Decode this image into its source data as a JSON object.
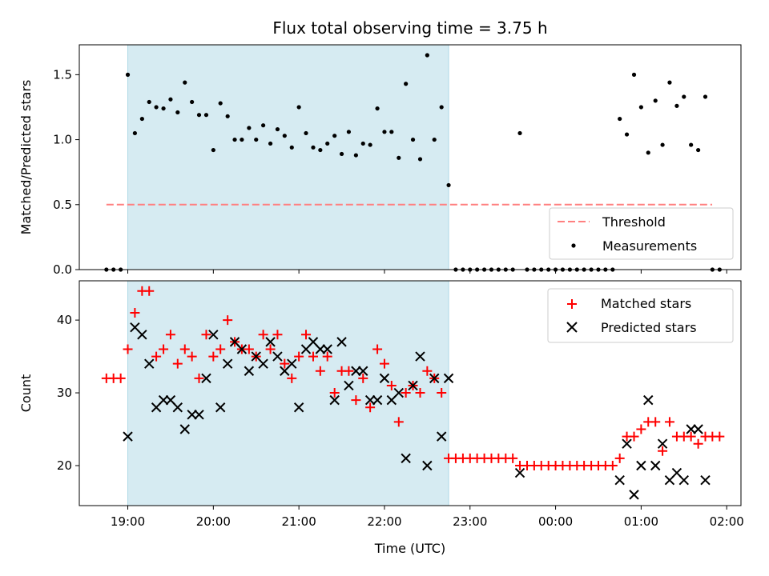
{
  "chart_data": {
    "type": "scatter",
    "title": "Flux total observing time = 3.75 h",
    "xlabel": "Time (UTC)",
    "x_ticks": [
      "19:00",
      "20:00",
      "21:00",
      "22:00",
      "23:00",
      "00:00",
      "01:00",
      "02:00"
    ],
    "x_range_hours": [
      18.4333,
      26.1667
    ],
    "shaded_span_hours": [
      19.0,
      22.75
    ],
    "shade_color": "#add8e6",
    "panels": [
      {
        "ylabel": "Matched/Predicted stars",
        "ylim": [
          0,
          1.73
        ],
        "y_ticks": [
          "0.0",
          "0.5",
          "1.0",
          "1.5"
        ],
        "y_tick_values": [
          0,
          0.5,
          1.0,
          1.5
        ],
        "legend_position": "lower right",
        "threshold": {
          "name": "Threshold",
          "value": 0.5,
          "x_range": [
            18.75,
            25.83
          ],
          "color": "#ff8080"
        },
        "series": [
          {
            "name": "Measurements",
            "marker": "dot",
            "color": "#000000",
            "points": [
              [
                18.75,
                0
              ],
              [
                18.833,
                0
              ],
              [
                18.917,
                0
              ],
              [
                19.0,
                1.5
              ],
              [
                19.083,
                1.05
              ],
              [
                19.167,
                1.16
              ],
              [
                19.25,
                1.29
              ],
              [
                19.333,
                1.25
              ],
              [
                19.417,
                1.24
              ],
              [
                19.5,
                1.31
              ],
              [
                19.583,
                1.21
              ],
              [
                19.667,
                1.44
              ],
              [
                19.75,
                1.29
              ],
              [
                19.833,
                1.19
              ],
              [
                19.917,
                1.19
              ],
              [
                20.0,
                0.92
              ],
              [
                20.083,
                1.28
              ],
              [
                20.167,
                1.18
              ],
              [
                20.25,
                1.0
              ],
              [
                20.333,
                1.0
              ],
              [
                20.417,
                1.09
              ],
              [
                20.5,
                1.0
              ],
              [
                20.583,
                1.11
              ],
              [
                20.667,
                0.97
              ],
              [
                20.75,
                1.08
              ],
              [
                20.833,
                1.03
              ],
              [
                20.917,
                0.94
              ],
              [
                21.0,
                1.25
              ],
              [
                21.083,
                1.05
              ],
              [
                21.167,
                0.94
              ],
              [
                21.25,
                0.92
              ],
              [
                21.333,
                0.97
              ],
              [
                21.417,
                1.03
              ],
              [
                21.5,
                0.89
              ],
              [
                21.583,
                1.06
              ],
              [
                21.667,
                0.88
              ],
              [
                21.75,
                0.97
              ],
              [
                21.833,
                0.96
              ],
              [
                21.917,
                1.24
              ],
              [
                22.0,
                1.06
              ],
              [
                22.083,
                1.06
              ],
              [
                22.167,
                0.86
              ],
              [
                22.25,
                1.43
              ],
              [
                22.333,
                1.0
              ],
              [
                22.417,
                0.85
              ],
              [
                22.5,
                1.65
              ],
              [
                22.583,
                1.0
              ],
              [
                22.667,
                1.25
              ],
              [
                22.75,
                0.65
              ],
              [
                22.833,
                0
              ],
              [
                22.917,
                0
              ],
              [
                23.0,
                0
              ],
              [
                23.083,
                0
              ],
              [
                23.167,
                0
              ],
              [
                23.25,
                0
              ],
              [
                23.333,
                0
              ],
              [
                23.417,
                0
              ],
              [
                23.5,
                0
              ],
              [
                23.583,
                1.05
              ],
              [
                23.667,
                0
              ],
              [
                23.75,
                0
              ],
              [
                23.833,
                0
              ],
              [
                23.917,
                0
              ],
              [
                24.0,
                0
              ],
              [
                24.083,
                0
              ],
              [
                24.167,
                0
              ],
              [
                24.25,
                0
              ],
              [
                24.333,
                0
              ],
              [
                24.417,
                0
              ],
              [
                24.5,
                0
              ],
              [
                24.583,
                0
              ],
              [
                24.667,
                0
              ],
              [
                24.75,
                1.16
              ],
              [
                24.833,
                1.04
              ],
              [
                24.917,
                1.5
              ],
              [
                25.0,
                1.25
              ],
              [
                25.083,
                0.9
              ],
              [
                25.167,
                1.3
              ],
              [
                25.25,
                0.96
              ],
              [
                25.333,
                1.44
              ],
              [
                25.417,
                1.26
              ],
              [
                25.5,
                1.33
              ],
              [
                25.583,
                0.96
              ],
              [
                25.667,
                0.92
              ],
              [
                25.75,
                1.33
              ],
              [
                25.833,
                0
              ],
              [
                25.917,
                0
              ]
            ]
          }
        ]
      },
      {
        "ylabel": "Count",
        "ylim": [
          14.5,
          45.4
        ],
        "y_ticks": [
          "20",
          "30",
          "40"
        ],
        "y_tick_values": [
          20,
          30,
          40
        ],
        "legend_position": "upper right",
        "series": [
          {
            "name": "Matched stars",
            "marker": "plus",
            "color": "#ff0000",
            "points": [
              [
                18.75,
                32
              ],
              [
                18.833,
                32
              ],
              [
                18.917,
                32
              ],
              [
                19.0,
                36
              ],
              [
                19.083,
                41
              ],
              [
                19.167,
                44
              ],
              [
                19.25,
                44
              ],
              [
                19.333,
                35
              ],
              [
                19.417,
                36
              ],
              [
                19.5,
                38
              ],
              [
                19.583,
                34
              ],
              [
                19.667,
                36
              ],
              [
                19.75,
                35
              ],
              [
                19.833,
                32
              ],
              [
                19.917,
                38
              ],
              [
                20.0,
                35
              ],
              [
                20.083,
                36
              ],
              [
                20.167,
                40
              ],
              [
                20.25,
                37
              ],
              [
                20.333,
                36
              ],
              [
                20.417,
                36
              ],
              [
                20.5,
                35
              ],
              [
                20.583,
                38
              ],
              [
                20.667,
                36
              ],
              [
                20.75,
                38
              ],
              [
                20.833,
                34
              ],
              [
                20.917,
                32
              ],
              [
                21.0,
                35
              ],
              [
                21.083,
                38
              ],
              [
                21.167,
                35
              ],
              [
                21.25,
                33
              ],
              [
                21.333,
                35
              ],
              [
                21.417,
                30
              ],
              [
                21.5,
                33
              ],
              [
                21.583,
                33
              ],
              [
                21.667,
                29
              ],
              [
                21.75,
                32
              ],
              [
                21.833,
                28
              ],
              [
                21.917,
                36
              ],
              [
                22.0,
                34
              ],
              [
                22.083,
                31
              ],
              [
                22.167,
                26
              ],
              [
                22.25,
                30
              ],
              [
                22.333,
                31
              ],
              [
                22.417,
                30
              ],
              [
                22.5,
                33
              ],
              [
                22.583,
                32
              ],
              [
                22.667,
                30
              ],
              [
                22.75,
                21
              ],
              [
                22.833,
                21
              ],
              [
                22.917,
                21
              ],
              [
                23.0,
                21
              ],
              [
                23.083,
                21
              ],
              [
                23.167,
                21
              ],
              [
                23.25,
                21
              ],
              [
                23.333,
                21
              ],
              [
                23.417,
                21
              ],
              [
                23.5,
                21
              ],
              [
                23.583,
                20
              ],
              [
                23.667,
                20
              ],
              [
                23.75,
                20
              ],
              [
                23.833,
                20
              ],
              [
                23.917,
                20
              ],
              [
                24.0,
                20
              ],
              [
                24.083,
                20
              ],
              [
                24.167,
                20
              ],
              [
                24.25,
                20
              ],
              [
                24.333,
                20
              ],
              [
                24.417,
                20
              ],
              [
                24.5,
                20
              ],
              [
                24.583,
                20
              ],
              [
                24.667,
                20
              ],
              [
                24.75,
                21
              ],
              [
                24.833,
                24
              ],
              [
                24.917,
                24
              ],
              [
                25.0,
                25
              ],
              [
                25.083,
                26
              ],
              [
                25.167,
                26
              ],
              [
                25.25,
                22
              ],
              [
                25.333,
                26
              ],
              [
                25.417,
                24
              ],
              [
                25.5,
                24
              ],
              [
                25.583,
                24
              ],
              [
                25.667,
                23
              ],
              [
                25.75,
                24
              ],
              [
                25.833,
                24
              ],
              [
                25.917,
                24
              ]
            ]
          },
          {
            "name": "Predicted stars",
            "marker": "x",
            "color": "#000000",
            "points": [
              [
                19.0,
                24
              ],
              [
                19.083,
                39
              ],
              [
                19.167,
                38
              ],
              [
                19.25,
                34
              ],
              [
                19.333,
                28
              ],
              [
                19.417,
                29
              ],
              [
                19.5,
                29
              ],
              [
                19.583,
                28
              ],
              [
                19.667,
                25
              ],
              [
                19.75,
                27
              ],
              [
                19.833,
                27
              ],
              [
                19.917,
                32
              ],
              [
                20.0,
                38
              ],
              [
                20.083,
                28
              ],
              [
                20.167,
                34
              ],
              [
                20.25,
                37
              ],
              [
                20.333,
                36
              ],
              [
                20.417,
                33
              ],
              [
                20.5,
                35
              ],
              [
                20.583,
                34
              ],
              [
                20.667,
                37
              ],
              [
                20.75,
                35
              ],
              [
                20.833,
                33
              ],
              [
                20.917,
                34
              ],
              [
                21.0,
                28
              ],
              [
                21.083,
                36
              ],
              [
                21.167,
                37
              ],
              [
                21.25,
                36
              ],
              [
                21.333,
                36
              ],
              [
                21.417,
                29
              ],
              [
                21.5,
                37
              ],
              [
                21.583,
                31
              ],
              [
                21.667,
                33
              ],
              [
                21.75,
                33
              ],
              [
                21.833,
                29
              ],
              [
                21.917,
                29
              ],
              [
                22.0,
                32
              ],
              [
                22.083,
                29
              ],
              [
                22.167,
                30
              ],
              [
                22.25,
                21
              ],
              [
                22.333,
                31
              ],
              [
                22.417,
                35
              ],
              [
                22.5,
                20
              ],
              [
                22.583,
                32
              ],
              [
                22.667,
                24
              ],
              [
                22.75,
                32
              ],
              [
                23.583,
                19
              ],
              [
                24.75,
                18
              ],
              [
                24.833,
                23
              ],
              [
                24.917,
                16
              ],
              [
                25.0,
                20
              ],
              [
                25.083,
                29
              ],
              [
                25.167,
                20
              ],
              [
                25.25,
                23
              ],
              [
                25.333,
                18
              ],
              [
                25.417,
                19
              ],
              [
                25.5,
                18
              ],
              [
                25.583,
                25
              ],
              [
                25.667,
                25
              ],
              [
                25.75,
                18
              ]
            ]
          }
        ]
      }
    ]
  }
}
